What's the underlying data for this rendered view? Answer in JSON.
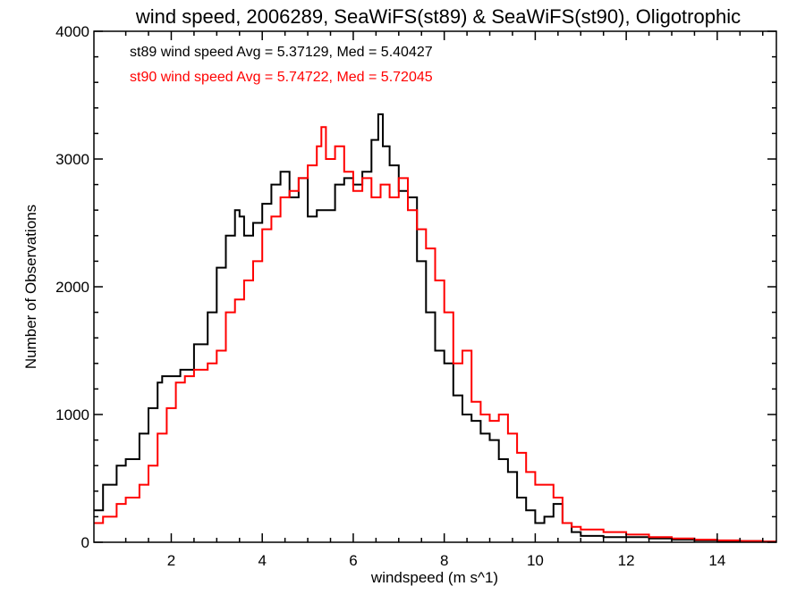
{
  "chart_data": {
    "type": "line",
    "title": "wind speed, 2006289, SeaWiFS(st89) & SeaWiFS(st90), Oligotrophic",
    "xlabel": "windspeed (m s^1)",
    "ylabel": "Number of Observations",
    "xlim": [
      0.3,
      15.3
    ],
    "ylim": [
      0,
      4000
    ],
    "xticks": [
      2,
      4,
      6,
      8,
      10,
      12,
      14
    ],
    "yticks": [
      0,
      1000,
      2000,
      3000,
      4000
    ],
    "xtick_labels": [
      "2",
      "4",
      "6",
      "8",
      "10",
      "12",
      "14"
    ],
    "ytick_labels": [
      "0",
      "1000",
      "2000",
      "3000",
      "4000"
    ],
    "step": true,
    "grid": false,
    "legend": [
      {
        "text": "st89 wind speed Avg = 5.37129, Med = 5.40427",
        "color": "#000000"
      },
      {
        "text": "st90 wind speed Avg = 5.74722, Med = 5.72045",
        "color": "#ff0000"
      }
    ],
    "series": [
      {
        "color": "#000000",
        "x": [
          0.3,
          0.5,
          0.8,
          1.0,
          1.3,
          1.5,
          1.7,
          1.8,
          2.0,
          2.2,
          2.5,
          2.8,
          3.0,
          3.2,
          3.4,
          3.5,
          3.6,
          3.8,
          4.0,
          4.2,
          4.4,
          4.6,
          4.8,
          5.0,
          5.2,
          5.4,
          5.6,
          5.8,
          6.0,
          6.2,
          6.4,
          6.55,
          6.65,
          6.8,
          7.0,
          7.2,
          7.4,
          7.6,
          7.8,
          8.0,
          8.2,
          8.4,
          8.6,
          8.8,
          9.0,
          9.2,
          9.4,
          9.6,
          9.8,
          10.0,
          10.2,
          10.4,
          10.6,
          10.8,
          11.0,
          11.5,
          12.0,
          12.5,
          13.0,
          13.5,
          14.0,
          14.5,
          15.0,
          15.3
        ],
        "y": [
          250,
          450,
          600,
          650,
          850,
          1050,
          1250,
          1300,
          1300,
          1350,
          1550,
          1800,
          2150,
          2400,
          2600,
          2550,
          2400,
          2500,
          2650,
          2800,
          2900,
          2700,
          2850,
          2550,
          2600,
          2600,
          2800,
          2850,
          2800,
          2900,
          3150,
          3350,
          3100,
          2950,
          2750,
          2700,
          2200,
          1800,
          1500,
          1400,
          1150,
          1000,
          950,
          850,
          800,
          650,
          550,
          350,
          250,
          150,
          200,
          300,
          150,
          80,
          50,
          40,
          40,
          30,
          20,
          15,
          10,
          10,
          5,
          5
        ]
      },
      {
        "color": "#ff0000",
        "x": [
          0.3,
          0.5,
          0.8,
          1.0,
          1.3,
          1.5,
          1.7,
          1.9,
          2.1,
          2.3,
          2.5,
          2.8,
          3.0,
          3.2,
          3.4,
          3.6,
          3.8,
          4.0,
          4.2,
          4.4,
          4.6,
          4.8,
          5.0,
          5.2,
          5.3,
          5.4,
          5.6,
          5.8,
          6.0,
          6.2,
          6.4,
          6.6,
          6.8,
          7.0,
          7.2,
          7.4,
          7.6,
          7.8,
          8.0,
          8.2,
          8.4,
          8.6,
          8.8,
          9.0,
          9.2,
          9.4,
          9.6,
          9.8,
          10.0,
          10.2,
          10.4,
          10.6,
          10.8,
          11.0,
          11.5,
          12.0,
          12.5,
          13.0,
          13.5,
          14.0,
          14.5,
          15.0,
          15.3
        ],
        "y": [
          150,
          200,
          300,
          350,
          450,
          600,
          850,
          1050,
          1250,
          1300,
          1350,
          1400,
          1500,
          1800,
          1900,
          2050,
          2200,
          2450,
          2550,
          2700,
          2750,
          2850,
          2950,
          3100,
          3250,
          3000,
          3100,
          2900,
          2750,
          2850,
          2700,
          2800,
          2700,
          2850,
          2600,
          2450,
          2300,
          2050,
          1800,
          1400,
          1500,
          1100,
          1000,
          950,
          1000,
          850,
          700,
          550,
          450,
          450,
          350,
          150,
          120,
          100,
          80,
          60,
          40,
          30,
          20,
          15,
          10,
          5,
          5
        ]
      }
    ]
  }
}
